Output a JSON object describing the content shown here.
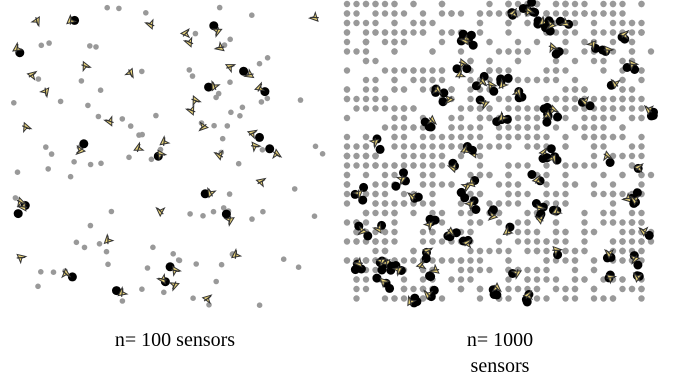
{
  "panels": [
    {
      "caption_line1": "n= 100 sensors",
      "caption_line2": "",
      "sensor_count": 100
    },
    {
      "caption_line1": "n= 1000",
      "caption_line2": "sensors",
      "sensor_count": 1000
    }
  ],
  "colors": {
    "sensor_inactive": "#999999",
    "sensor_active": "#000000",
    "target_fill": "#e8d37a",
    "target_stroke": "#333333",
    "background": "#ffffff"
  },
  "legend": {
    "sensor_marker": "gray-dot",
    "active_sensor_marker": "black-dot",
    "target_marker": "arrow-icon"
  }
}
